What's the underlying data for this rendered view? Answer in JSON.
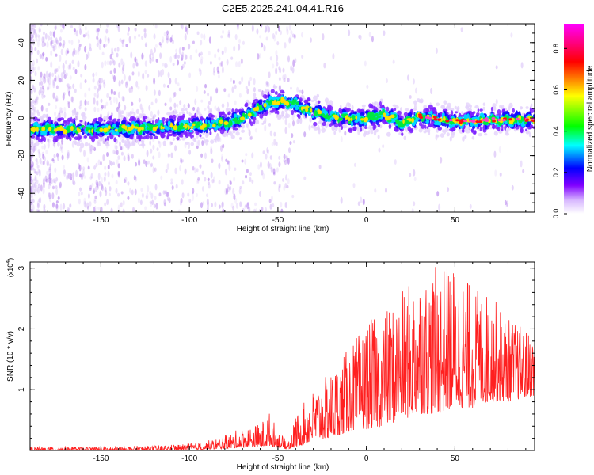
{
  "title": "C2E5.2025.241.04.41.R16",
  "chart_data": [
    {
      "type": "heatmap",
      "title": "C2E5.2025.241.04.41.R16",
      "xlabel": "Height of straight line (km)",
      "ylabel": "Frequency (Hz)",
      "xlim": [
        -190,
        95
      ],
      "ylim": [
        -50,
        50
      ],
      "xticks": [
        -150,
        -100,
        -50,
        0,
        50
      ],
      "xtick_labels": [
        "-150",
        "-100",
        "-50",
        "0",
        "50"
      ],
      "yticks": [
        -40,
        -20,
        0,
        20,
        40
      ],
      "ytick_labels": [
        "-40",
        "-20",
        "0",
        "20",
        "40"
      ],
      "colorbar": {
        "label": "Normalized spectral amplitude",
        "range": [
          0,
          0.92
        ],
        "ticks": [
          0,
          0.2,
          0.4,
          0.6,
          0.8
        ],
        "tick_labels": [
          "0.0",
          "0.2",
          "0.4",
          "0.6",
          "0.8"
        ],
        "colors": [
          "#f0f0ff",
          "#8000ff",
          "#0000ff",
          "#00ffff",
          "#00ff00",
          "#ffff00",
          "#ff0000",
          "#ff00ff"
        ]
      },
      "ridge": {
        "description_points_x": [
          -190,
          -150,
          -110,
          -90,
          -75,
          -65,
          -55,
          -48,
          -40,
          -30,
          -20,
          -5,
          10,
          20,
          30,
          50,
          70,
          95
        ],
        "description_points_freq": [
          -6,
          -6,
          -5,
          -4,
          -2,
          3,
          8,
          9,
          7,
          3,
          1,
          -1,
          2,
          -3,
          1,
          -2,
          -1,
          -1
        ]
      }
    },
    {
      "type": "line",
      "xlabel": "Height of straight line (km)",
      "ylabel": "SNR (10 * v/v)",
      "exponent_label": "(x10",
      "exponent_power": "4",
      "exponent_close": ")",
      "xlim": [
        -190,
        95
      ],
      "ylim": [
        0,
        3.1
      ],
      "xticks": [
        -150,
        -100,
        -50,
        0,
        50
      ],
      "xtick_labels": [
        "-150",
        "-100",
        "-50",
        "0",
        "50"
      ],
      "yticks": [
        1,
        2,
        3
      ],
      "ytick_labels": [
        "1",
        "2",
        "3"
      ],
      "color": "#ff2020",
      "envelope": {
        "x": [
          -190,
          -120,
          -100,
          -90,
          -80,
          -70,
          -60,
          -55,
          -50,
          -45,
          -40,
          -35,
          -30,
          -20,
          -10,
          0,
          10,
          20,
          30,
          35,
          40,
          50,
          60,
          70,
          80,
          95
        ],
        "max": [
          0.06,
          0.08,
          0.12,
          0.16,
          0.25,
          0.38,
          0.45,
          0.65,
          0.35,
          0.15,
          0.55,
          0.8,
          1.0,
          1.3,
          1.7,
          2.1,
          2.3,
          2.6,
          3.0,
          2.9,
          3.05,
          3.1,
          2.7,
          2.6,
          2.2,
          1.9
        ],
        "min": [
          0.0,
          0.0,
          0.01,
          0.02,
          0.03,
          0.05,
          0.06,
          0.08,
          0.05,
          0.02,
          0.05,
          0.1,
          0.15,
          0.2,
          0.3,
          0.35,
          0.4,
          0.5,
          0.6,
          0.6,
          0.6,
          0.7,
          0.7,
          0.8,
          0.8,
          0.9
        ]
      }
    }
  ]
}
